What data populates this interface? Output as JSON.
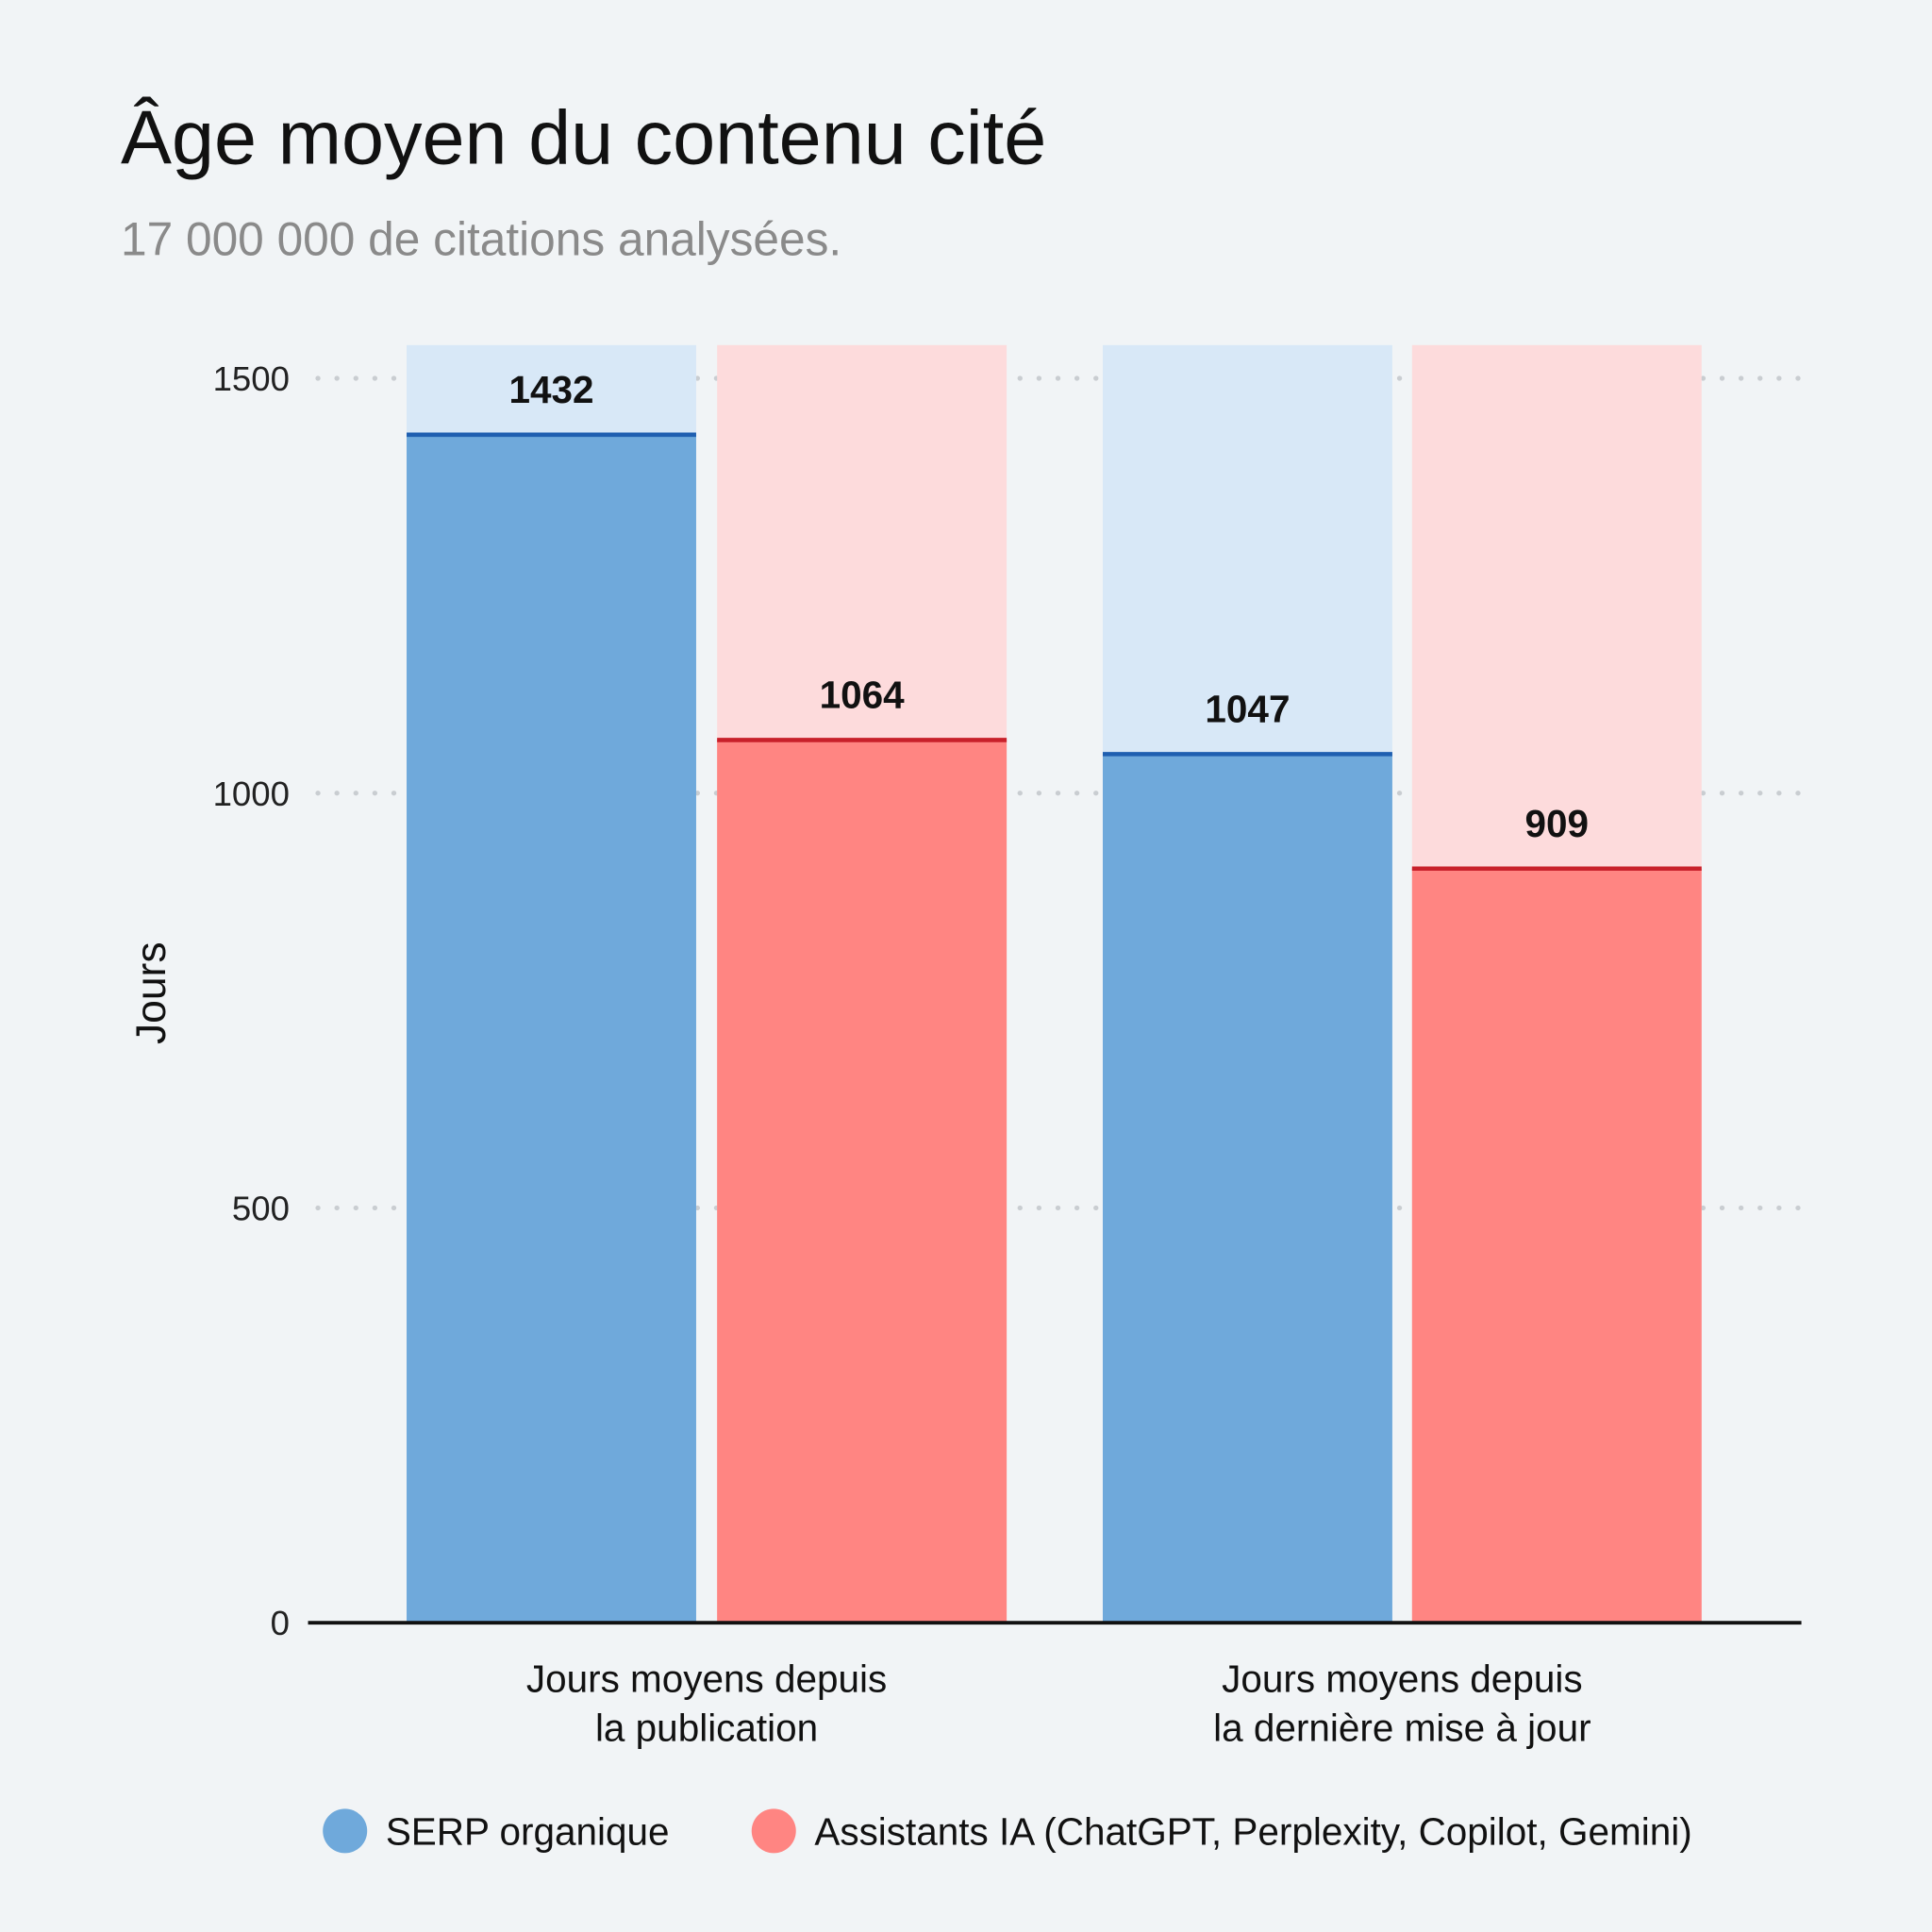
{
  "chart_data": {
    "type": "bar",
    "title": "Âge moyen du contenu cité",
    "subtitle": "17 000 000 de citations analysées.",
    "ylabel": "Jours",
    "xlabel": "",
    "ylim": [
      0,
      1540
    ],
    "yticks": [
      0,
      500,
      1000,
      1500
    ],
    "ytick_labels": [
      "0",
      "500",
      "1000",
      "1500"
    ],
    "grid": "horizontal dotted",
    "categories": [
      [
        "Jours moyens depuis",
        "la publication"
      ],
      [
        "Jours moyens depuis",
        "la dernière mise à jour"
      ]
    ],
    "series": [
      {
        "name": "SERP organique",
        "values": [
          1432,
          1047
        ],
        "labels": [
          "1432",
          "1047"
        ],
        "color": "#6fa9db",
        "light": "#d8e8f7",
        "line": "#1f5fb0"
      },
      {
        "name": "Assistants IA (ChatGPT, Perplexity, Copilot, Gemini)",
        "values": [
          1064,
          909
        ],
        "labels": [
          "1064",
          "909"
        ],
        "color": "#ff8582",
        "light": "#fddbdc",
        "line": "#c8202a"
      }
    ],
    "legend_position": "bottom"
  }
}
